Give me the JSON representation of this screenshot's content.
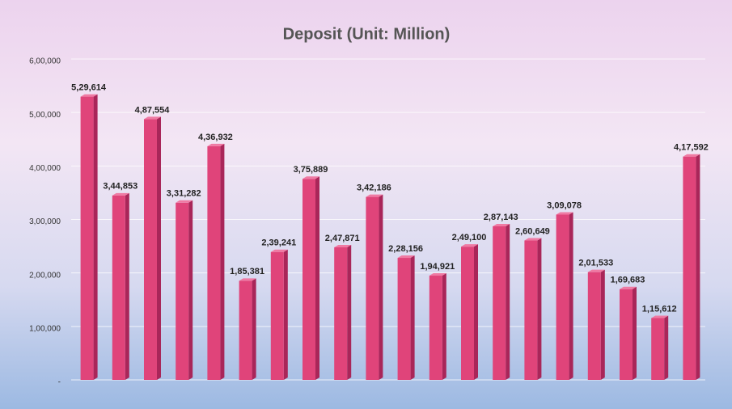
{
  "chart_data": {
    "type": "bar",
    "title": "Deposit (Unit: Million)",
    "values": [
      529614,
      344853,
      487554,
      331282,
      436932,
      185381,
      239241,
      375889,
      247871,
      342186,
      228156,
      194921,
      249100,
      287143,
      260649,
      309078,
      201533,
      169683,
      115612,
      417592
    ],
    "value_labels": [
      "5,29,614",
      "3,44,853",
      "4,87,554",
      "3,31,282",
      "4,36,932",
      "1,85,381",
      "2,39,241",
      "3,75,889",
      "2,47,871",
      "3,42,186",
      "2,28,156",
      "1,94,921",
      "2,49,100",
      "2,87,143",
      "2,60,649",
      "3,09,078",
      "2,01,533",
      "1,69,683",
      "1,15,612",
      "4,17,592"
    ],
    "color": "#e0447a",
    "ylim": [
      0,
      600000
    ],
    "yticks": [
      {
        "value": 0,
        "label": "-"
      },
      {
        "value": 100000,
        "label": "1,00,000"
      },
      {
        "value": 200000,
        "label": "2,00,000"
      },
      {
        "value": 300000,
        "label": "3,00,000"
      },
      {
        "value": 400000,
        "label": "4,00,000"
      },
      {
        "value": 500000,
        "label": "5,00,000"
      },
      {
        "value": 600000,
        "label": "6,00,000"
      }
    ],
    "grid": true
  }
}
